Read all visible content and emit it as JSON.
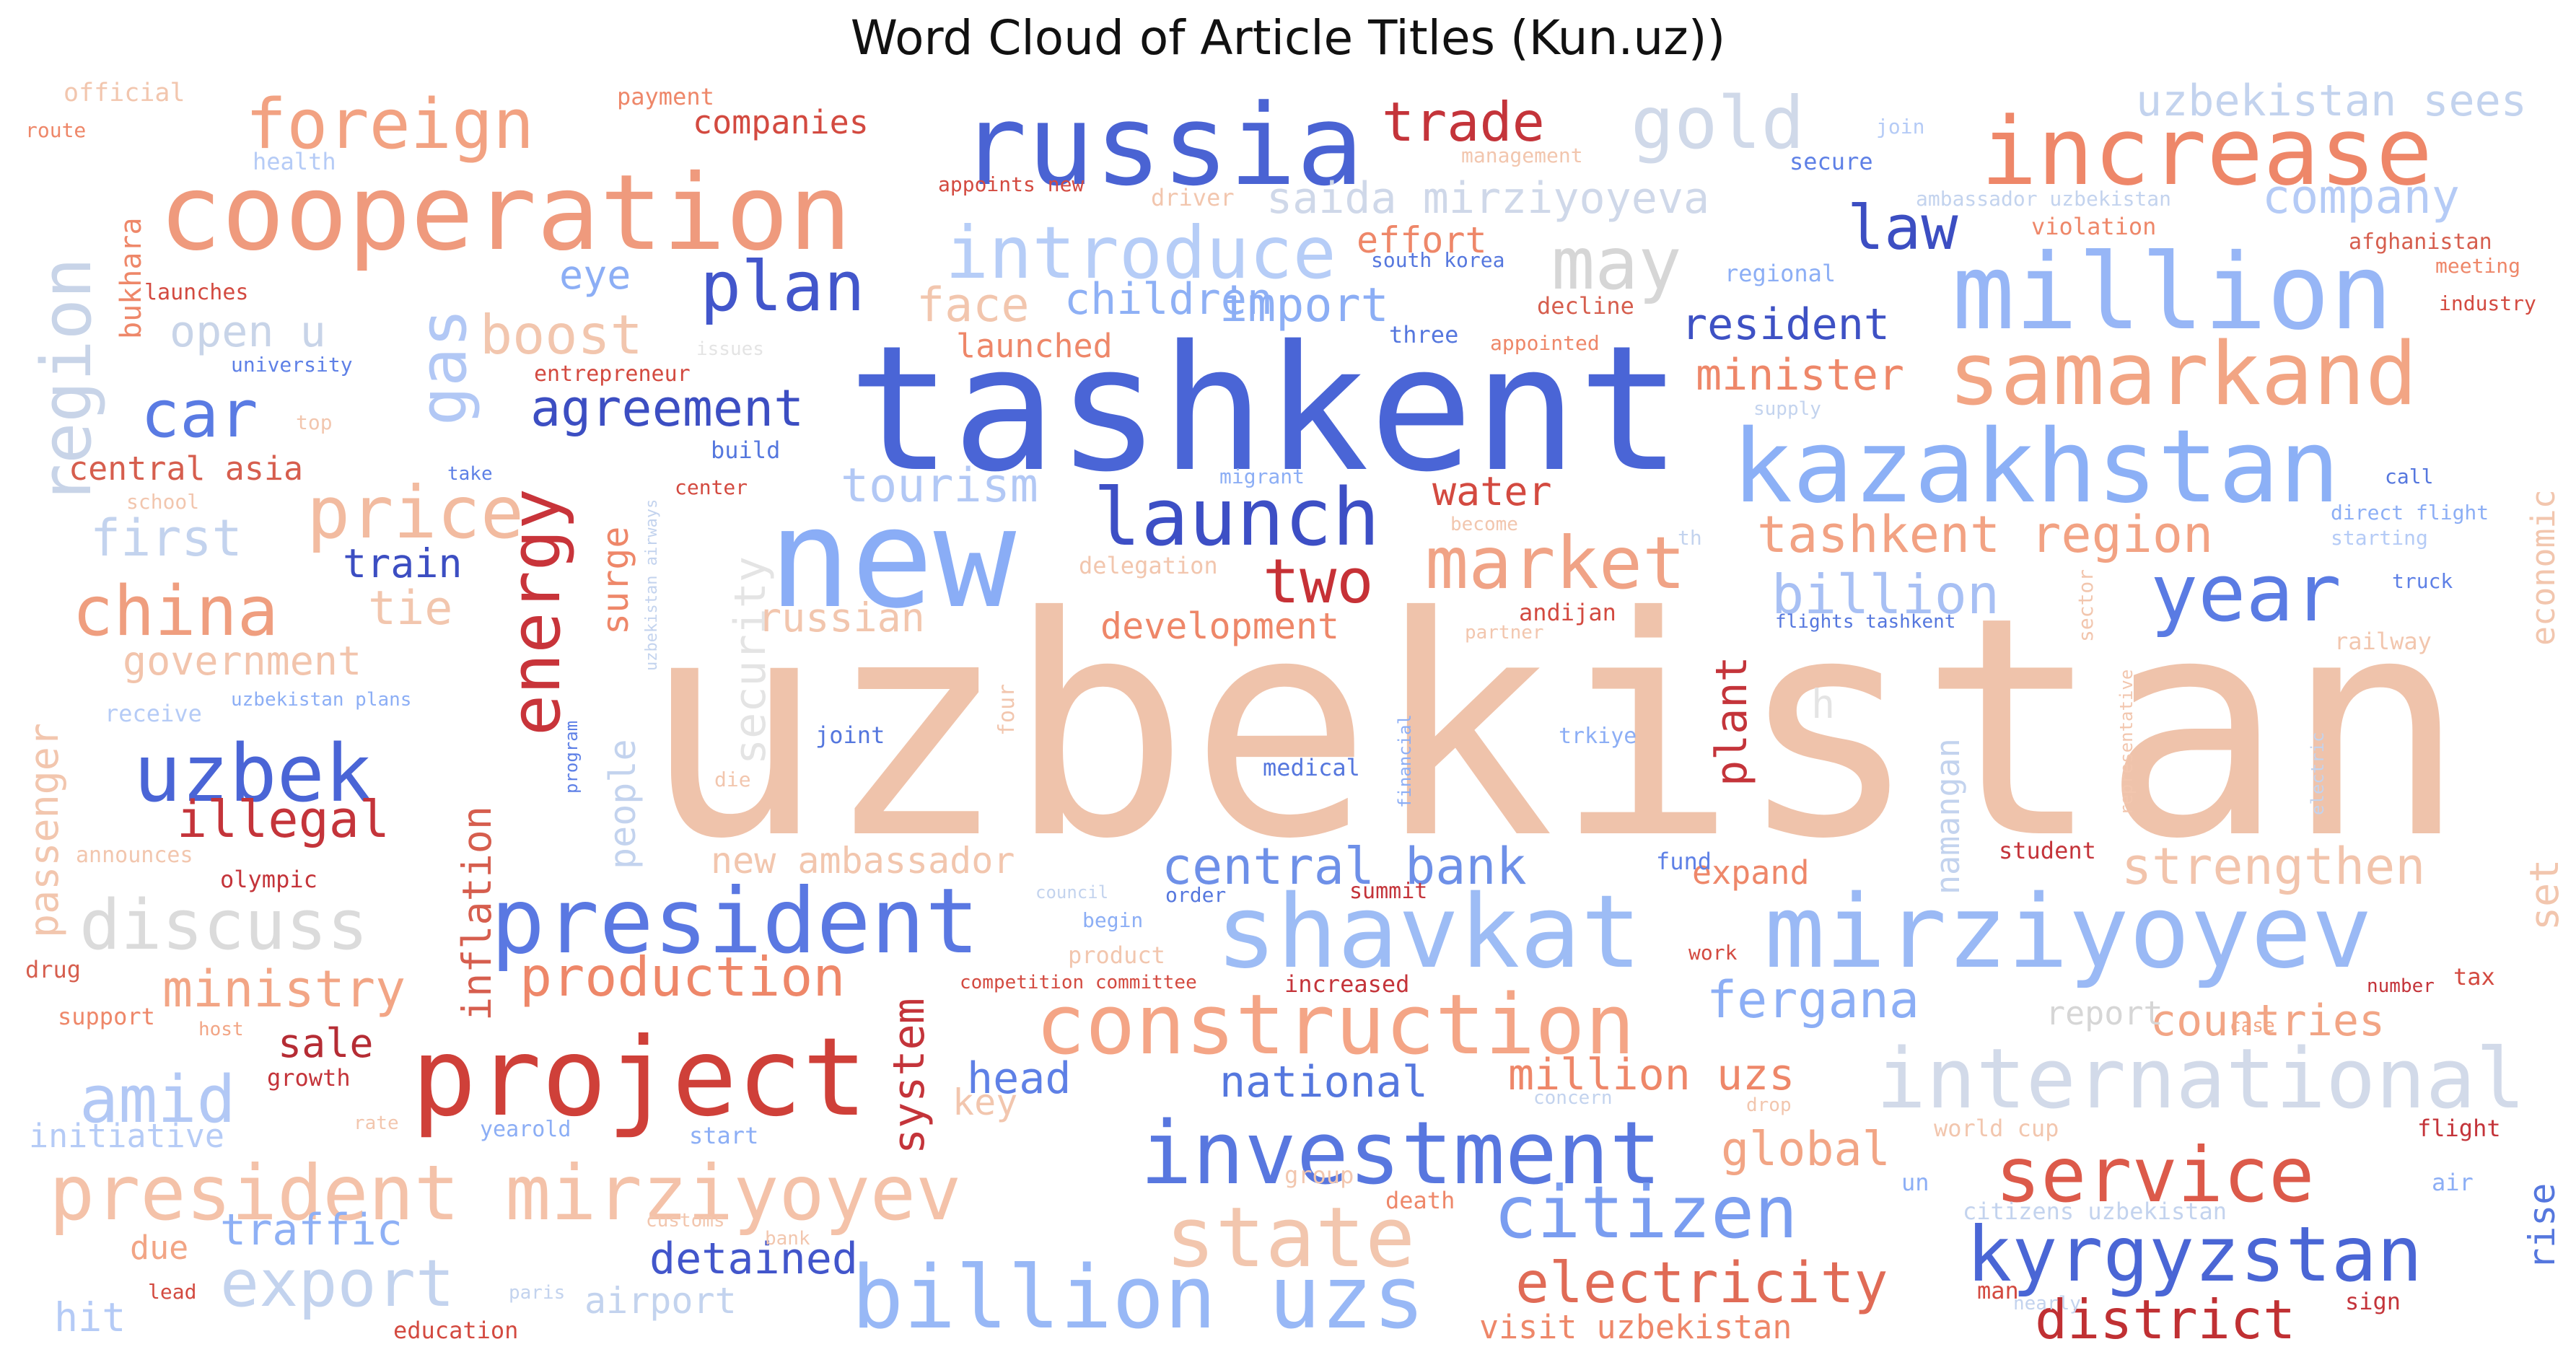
{
  "chart_data": {
    "type": "wordcloud",
    "title": "Word Cloud of Article Titles (Kun.uz))",
    "colormap": "coolwarm",
    "background": "#ffffff",
    "words": [
      {
        "text": "uzbekistan",
        "weight": 100,
        "color": "#efc3ab"
      },
      {
        "text": "tashkent",
        "weight": 46,
        "color": "#4a65d6"
      },
      {
        "text": "new",
        "weight": 34,
        "color": "#8aadf6"
      },
      {
        "text": "russia",
        "weight": 31,
        "color": "#4a63d3"
      },
      {
        "text": "cooperation",
        "weight": 29,
        "color": "#ef9a7d"
      },
      {
        "text": "increase",
        "weight": 26,
        "color": "#ee8769"
      },
      {
        "text": "million",
        "weight": 27,
        "color": "#97b6f6"
      },
      {
        "text": "kazakhstan",
        "weight": 24,
        "color": "#8cb0f6"
      },
      {
        "text": "samarkand",
        "weight": 22,
        "color": "#f2a584"
      },
      {
        "text": "mirziyoyev",
        "weight": 24,
        "color": "#9ab9f5"
      },
      {
        "text": "shavkat",
        "weight": 24,
        "color": "#9dbcf5"
      },
      {
        "text": "project",
        "weight": 25,
        "color": "#cf4039"
      },
      {
        "text": "president",
        "weight": 22,
        "color": "#5a78e2"
      },
      {
        "text": "investment",
        "weight": 21,
        "color": "#5877df"
      },
      {
        "text": "construction",
        "weight": 21,
        "color": "#f4a586"
      },
      {
        "text": "international",
        "weight": 21,
        "color": "#d2dae9"
      },
      {
        "text": "billion uzs",
        "weight": 22,
        "color": "#98b8f6"
      },
      {
        "text": "president mirziyoyev",
        "weight": 19,
        "color": "#f4c2a9"
      },
      {
        "text": "state",
        "weight": 20,
        "color": "#f2c6ae"
      },
      {
        "text": "kyrgyzstan",
        "weight": 18,
        "color": "#4a66d5"
      },
      {
        "text": "service",
        "weight": 19,
        "color": "#dc5a4a"
      },
      {
        "text": "citizen",
        "weight": 17,
        "color": "#7a9df0"
      },
      {
        "text": "year",
        "weight": 18,
        "color": "#5a7be3"
      },
      {
        "text": "market",
        "weight": 18,
        "color": "#f0a386"
      },
      {
        "text": "launch",
        "weight": 19,
        "color": "#3d4fc5"
      },
      {
        "text": "introduce",
        "weight": 18,
        "color": "#b6cdf7"
      },
      {
        "text": "foreign",
        "weight": 16,
        "color": "#f2a282"
      },
      {
        "text": "gold",
        "weight": 16,
        "color": "#d0d9e9"
      },
      {
        "text": "may",
        "weight": 17,
        "color": "#d6d6d6"
      },
      {
        "text": "region",
        "weight": 16,
        "color": "#c8d4e8"
      },
      {
        "text": "gas",
        "weight": 15,
        "color": "#b2c8f5"
      },
      {
        "text": "car",
        "weight": 15,
        "color": "#5a7be3"
      },
      {
        "text": "price",
        "weight": 16,
        "color": "#f2bba0"
      },
      {
        "text": "china",
        "weight": 15,
        "color": "#ef9e7f"
      },
      {
        "text": "uzbek",
        "weight": 17,
        "color": "#4a65d6"
      },
      {
        "text": "discuss",
        "weight": 16,
        "color": "#dbdbdb"
      },
      {
        "text": "energy",
        "weight": 15,
        "color": "#c8343a"
      },
      {
        "text": "plan",
        "weight": 14,
        "color": "#4256cb"
      },
      {
        "text": "law",
        "weight": 13,
        "color": "#3c4ec2"
      },
      {
        "text": "trade",
        "weight": 12,
        "color": "#c4343a"
      },
      {
        "text": "export",
        "weight": 14,
        "color": "#c3d3ee"
      },
      {
        "text": "electricity",
        "weight": 12,
        "color": "#e06b56"
      },
      {
        "text": "strengthen",
        "weight": 11,
        "color": "#f2c4ac"
      },
      {
        "text": "tashkent region",
        "weight": 11,
        "color": "#f2a283"
      },
      {
        "text": "billion",
        "weight": 12,
        "color": "#a8c0f4"
      },
      {
        "text": "central bank",
        "weight": 11,
        "color": "#6e90e8"
      },
      {
        "text": "company",
        "weight": 10,
        "color": "#b5cbf6"
      },
      {
        "text": "uzbekistan sees",
        "weight": 10,
        "color": "#c3d3ee"
      },
      {
        "text": "amid",
        "weight": 12,
        "color": "#b2c8f5"
      },
      {
        "text": "district",
        "weight": 12,
        "color": "#c03033"
      },
      {
        "text": "fergana",
        "weight": 11,
        "color": "#8caef5"
      },
      {
        "text": "ministry",
        "weight": 11,
        "color": "#f2a585"
      },
      {
        "text": "production",
        "weight": 11,
        "color": "#ee8769"
      },
      {
        "text": "agreement",
        "weight": 10,
        "color": "#3c4ec2"
      },
      {
        "text": "two",
        "weight": 12,
        "color": "#c63136"
      },
      {
        "text": "boost",
        "weight": 11,
        "color": "#f2c6ae"
      },
      {
        "text": "tourism",
        "weight": 10,
        "color": "#b2c8f5"
      },
      {
        "text": "face",
        "weight": 10,
        "color": "#f2c6ae"
      },
      {
        "text": "children",
        "weight": 9,
        "color": "#8eb0f5"
      },
      {
        "text": "import",
        "weight": 10,
        "color": "#8caef5"
      },
      {
        "text": "resident",
        "weight": 9,
        "color": "#3e51c4"
      },
      {
        "text": "minister",
        "weight": 9,
        "color": "#ee8769"
      },
      {
        "text": "saida mirziyoyeva",
        "weight": 9,
        "color": "#cfd8e9"
      },
      {
        "text": "effort",
        "weight": 8,
        "color": "#ee8769"
      },
      {
        "text": "global",
        "weight": 9,
        "color": "#f2a585"
      },
      {
        "text": "million uzs",
        "weight": 9,
        "color": "#ee8769"
      },
      {
        "text": "countries",
        "weight": 9,
        "color": "#f2a585"
      },
      {
        "text": "head",
        "weight": 9,
        "color": "#5e80e6"
      },
      {
        "text": "national",
        "weight": 9,
        "color": "#5577de"
      },
      {
        "text": "detained",
        "weight": 9,
        "color": "#4256cb"
      },
      {
        "text": "traffic",
        "weight": 9,
        "color": "#8eb0f5"
      },
      {
        "text": "illegal",
        "weight": 10,
        "color": "#c4343a"
      },
      {
        "text": "sale",
        "weight": 8,
        "color": "#b52c34"
      },
      {
        "text": "plant",
        "weight": 10,
        "color": "#c4343a"
      },
      {
        "text": "inflation",
        "weight": 9,
        "color": "#d65e4e"
      },
      {
        "text": "system",
        "weight": 8,
        "color": "#c4343a"
      },
      {
        "text": "surge",
        "weight": 8,
        "color": "#ee8769"
      },
      {
        "text": "people",
        "weight": 8,
        "color": "#c3d3ee"
      },
      {
        "text": "security",
        "weight": 9,
        "color": "#e4e4e4"
      },
      {
        "text": "water",
        "weight": 8,
        "color": "#d34a40"
      },
      {
        "text": "development",
        "weight": 8,
        "color": "#ee8769"
      },
      {
        "text": "russian",
        "weight": 8,
        "color": "#f2c6ae"
      },
      {
        "text": "new ambassador",
        "weight": 8,
        "color": "#f2c6ae"
      },
      {
        "text": "government",
        "weight": 8,
        "color": "#f2c4ac"
      },
      {
        "text": "tie",
        "weight": 9,
        "color": "#f2c6ae"
      },
      {
        "text": "first",
        "weight": 10,
        "color": "#c3d3ee"
      },
      {
        "text": "open u",
        "weight": 9,
        "color": "#c8d4e8"
      },
      {
        "text": "central asia",
        "weight": 7,
        "color": "#d65e4e"
      },
      {
        "text": "train",
        "weight": 8,
        "color": "#3c4ec2"
      },
      {
        "text": "passenger",
        "weight": 8,
        "color": "#f2c6ae"
      },
      {
        "text": "visit uzbekistan",
        "weight": 7,
        "color": "#ee8769"
      },
      {
        "text": "airport",
        "weight": 7,
        "color": "#c3d3ee"
      },
      {
        "text": "hit",
        "weight": 8,
        "color": "#b5cbf6"
      },
      {
        "text": "due",
        "weight": 7,
        "color": "#f2a585"
      },
      {
        "text": "initiative",
        "weight": 7,
        "color": "#b5cbf6"
      },
      {
        "text": "companies",
        "weight": 7,
        "color": "#d34a40"
      },
      {
        "text": "bukhara",
        "weight": 7,
        "color": "#ee8769"
      },
      {
        "text": "eye",
        "weight": 8,
        "color": "#8caef5"
      },
      {
        "text": "launched",
        "weight": 7,
        "color": "#ee8769"
      },
      {
        "text": "namangan",
        "weight": 7,
        "color": "#c3d3ee"
      },
      {
        "text": "economic",
        "weight": 7,
        "color": "#f2c6ae"
      },
      {
        "text": "set",
        "weight": 8,
        "color": "#f2c6ae"
      },
      {
        "text": "rise",
        "weight": 7,
        "color": "#5577de"
      },
      {
        "text": "report",
        "weight": 7,
        "color": "#d6d6d6"
      },
      {
        "text": "expand",
        "weight": 7,
        "color": "#ee8769"
      },
      {
        "text": "key",
        "weight": 7,
        "color": "#f2c6ae"
      },
      {
        "text": "h",
        "weight": 7,
        "color": "#e4e4e4"
      },
      {
        "text": "official",
        "weight": 6,
        "color": "#f2c6ae"
      },
      {
        "text": "payment",
        "weight": 5,
        "color": "#ee8769"
      },
      {
        "text": "route",
        "weight": 4,
        "color": "#ee8769"
      },
      {
        "text": "health",
        "weight": 5,
        "color": "#b5cbf6"
      },
      {
        "text": "launches",
        "weight": 5,
        "color": "#d34a40"
      },
      {
        "text": "university",
        "weight": 4,
        "color": "#5e80e6"
      },
      {
        "text": "entrepreneur",
        "weight": 5,
        "color": "#d34a40"
      },
      {
        "text": "top",
        "weight": 4,
        "color": "#f2c6ae"
      },
      {
        "text": "take",
        "weight": 4,
        "color": "#5e80e6"
      },
      {
        "text": "school",
        "weight": 4,
        "color": "#f2c6ae"
      },
      {
        "text": "center",
        "weight": 4,
        "color": "#d34a40"
      },
      {
        "text": "build",
        "weight": 5,
        "color": "#5577de"
      },
      {
        "text": "receive",
        "weight": 5,
        "color": "#b5cbf6"
      },
      {
        "text": "uzbekistan plans",
        "weight": 4,
        "color": "#8caef5"
      },
      {
        "text": "announces",
        "weight": 5,
        "color": "#f2c6ae"
      },
      {
        "text": "olympic",
        "weight": 5,
        "color": "#c4343a"
      },
      {
        "text": "drug",
        "weight": 5,
        "color": "#d65e4e"
      },
      {
        "text": "support",
        "weight": 5,
        "color": "#ee8769"
      },
      {
        "text": "host",
        "weight": 4,
        "color": "#f2a585"
      },
      {
        "text": "growth",
        "weight": 5,
        "color": "#c4343a"
      },
      {
        "text": "rate",
        "weight": 4,
        "color": "#f2c6ae"
      },
      {
        "text": "lead",
        "weight": 4,
        "color": "#d34a40"
      },
      {
        "text": "education",
        "weight": 5,
        "color": "#d34a40"
      },
      {
        "text": "paris",
        "weight": 4,
        "color": "#c3d3ee"
      },
      {
        "text": "customs",
        "weight": 4,
        "color": "#f2c6ae"
      },
      {
        "text": "bank",
        "weight": 4,
        "color": "#f2c6ae"
      },
      {
        "text": "yearold",
        "weight": 5,
        "color": "#8caef5"
      },
      {
        "text": "start",
        "weight": 5,
        "color": "#8caef5"
      },
      {
        "text": "program",
        "weight": 3,
        "color": "#5e80e6"
      },
      {
        "text": "uzbekistan airways",
        "weight": 3,
        "color": "#c3d3ee"
      },
      {
        "text": "die",
        "weight": 4,
        "color": "#f2c6ae"
      },
      {
        "text": "four",
        "weight": 4,
        "color": "#f2c6ae"
      },
      {
        "text": "joint",
        "weight": 5,
        "color": "#5577de"
      },
      {
        "text": "migrant",
        "weight": 4,
        "color": "#8caef5"
      },
      {
        "text": "issues",
        "weight": 4,
        "color": "#e4e4e4"
      },
      {
        "text": "three",
        "weight": 5,
        "color": "#5577de"
      },
      {
        "text": "delegation",
        "weight": 5,
        "color": "#f2c6ae"
      },
      {
        "text": "become",
        "weight": 4,
        "color": "#f2c6ae"
      },
      {
        "text": "partner",
        "weight": 4,
        "color": "#f2c6ae"
      },
      {
        "text": "andijan",
        "weight": 5,
        "color": "#d34a40"
      },
      {
        "text": "medical",
        "weight": 5,
        "color": "#5577de"
      },
      {
        "text": "financial",
        "weight": 4,
        "color": "#8caef5"
      },
      {
        "text": "trkiye",
        "weight": 5,
        "color": "#8caef5"
      },
      {
        "text": "council",
        "weight": 4,
        "color": "#c3d3ee"
      },
      {
        "text": "order",
        "weight": 4,
        "color": "#5577de"
      },
      {
        "text": "begin",
        "weight": 4,
        "color": "#8caef5"
      },
      {
        "text": "summit",
        "weight": 5,
        "color": "#c4343a"
      },
      {
        "text": "product",
        "weight": 5,
        "color": "#f2c6ae"
      },
      {
        "text": "competition committee",
        "weight": 4,
        "color": "#d34a40"
      },
      {
        "text": "increased",
        "weight": 5,
        "color": "#c4343a"
      },
      {
        "text": "group",
        "weight": 5,
        "color": "#f2c6ae"
      },
      {
        "text": "death",
        "weight": 5,
        "color": "#ee8769"
      },
      {
        "text": "concern",
        "weight": 4,
        "color": "#c3d3ee"
      },
      {
        "text": "drop",
        "weight": 4,
        "color": "#f2c6ae"
      },
      {
        "text": "world cup",
        "weight": 5,
        "color": "#f2c6ae"
      },
      {
        "text": "work",
        "weight": 4,
        "color": "#d34a40"
      },
      {
        "text": "case",
        "weight": 4,
        "color": "#f2a585"
      },
      {
        "text": "un",
        "weight": 5,
        "color": "#8caef5"
      },
      {
        "text": "citizens uzbekistan",
        "weight": 5,
        "color": "#c3d3ee"
      },
      {
        "text": "man",
        "weight": 5,
        "color": "#d34a40"
      },
      {
        "text": "nearly",
        "weight": 4,
        "color": "#c3d3ee"
      },
      {
        "text": "sign",
        "weight": 5,
        "color": "#c4343a"
      },
      {
        "text": "tax",
        "weight": 5,
        "color": "#d34a40"
      },
      {
        "text": "number",
        "weight": 4,
        "color": "#c4343a"
      },
      {
        "text": "flight",
        "weight": 5,
        "color": "#c4343a"
      },
      {
        "text": "air",
        "weight": 5,
        "color": "#8caef5"
      },
      {
        "text": "student",
        "weight": 5,
        "color": "#c4343a"
      },
      {
        "text": "fund",
        "weight": 5,
        "color": "#5e80e6"
      },
      {
        "text": "representative",
        "weight": 3,
        "color": "#f2c6ae"
      },
      {
        "text": "electric",
        "weight": 3,
        "color": "#c3d3ee"
      },
      {
        "text": "sector",
        "weight": 4,
        "color": "#f2c6ae"
      },
      {
        "text": "railway",
        "weight": 5,
        "color": "#f2c6ae"
      },
      {
        "text": "truck",
        "weight": 4,
        "color": "#5e80e6"
      },
      {
        "text": "starting",
        "weight": 4,
        "color": "#b5cbf6"
      },
      {
        "text": "direct flight",
        "weight": 4,
        "color": "#8caef5"
      },
      {
        "text": "flights tashkent",
        "weight": 4,
        "color": "#5577de"
      },
      {
        "text": "th",
        "weight": 4,
        "color": "#c3d3ee"
      },
      {
        "text": "supply",
        "weight": 4,
        "color": "#c3d3ee"
      },
      {
        "text": "call",
        "weight": 4,
        "color": "#5577de"
      },
      {
        "text": "industry",
        "weight": 4,
        "color": "#d34a40"
      },
      {
        "text": "meeting",
        "weight": 4,
        "color": "#ee8769"
      },
      {
        "text": "afghanistan",
        "weight": 4,
        "color": "#d65e4e"
      },
      {
        "text": "violation",
        "weight": 5,
        "color": "#ee8769"
      },
      {
        "text": "ambassador uzbekistan",
        "weight": 4,
        "color": "#c3d3ee"
      },
      {
        "text": "regional",
        "weight": 5,
        "color": "#8caef5"
      },
      {
        "text": "secure",
        "weight": 5,
        "color": "#5e80e6"
      },
      {
        "text": "join",
        "weight": 4,
        "color": "#b5cbf6"
      },
      {
        "text": "management",
        "weight": 4,
        "color": "#f2c6ae"
      },
      {
        "text": "appoints new",
        "weight": 4,
        "color": "#d34a40"
      },
      {
        "text": "driver",
        "weight": 5,
        "color": "#f2c6ae"
      },
      {
        "text": "south korea",
        "weight": 4,
        "color": "#5577de"
      },
      {
        "text": "decline",
        "weight": 5,
        "color": "#d65e4e"
      },
      {
        "text": "appointed",
        "weight": 4,
        "color": "#ee8769"
      }
    ]
  }
}
